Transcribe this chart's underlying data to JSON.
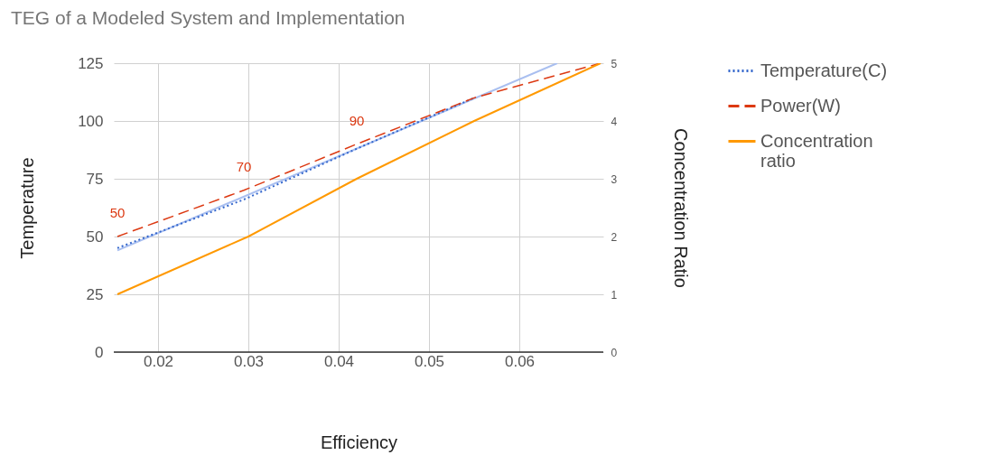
{
  "chart_data": {
    "type": "line",
    "title": "TEG of a Modeled System and Implementation",
    "xlabel": "Efficiency",
    "ylabel": "Temperature",
    "y2label": "Concentration Ratio",
    "series": [
      {
        "type": "line",
        "color": "#a9bff0",
        "line_style": "solid",
        "x": [
          0.0155,
          0.0642
        ],
        "values": [
          44,
          125
        ]
      },
      {
        "name": "Temperature(C)",
        "color": "#3366cc",
        "line_style": "dotted",
        "x": [
          0.0155,
          0.0295,
          0.042,
          0.055
        ],
        "values": [
          45,
          66,
          88,
          110
        ]
      },
      {
        "name": "Power(W)",
        "color": "#dc3912",
        "line_style": "dashed",
        "x": [
          0.0155,
          0.0295,
          0.042,
          0.055,
          0.069
        ],
        "values": [
          50,
          70,
          90,
          110,
          125
        ],
        "value_labels": [
          "50",
          "70",
          "90",
          null,
          null
        ]
      },
      {
        "name": "Concentration ratio",
        "color": "#ff9900",
        "line_style": "solid",
        "axis": "y2",
        "x": [
          0.0155,
          0.03,
          0.042,
          0.055,
          0.069
        ],
        "values": [
          1,
          2,
          3,
          4,
          5
        ]
      }
    ],
    "xlim": [
      0.0151,
      0.0693
    ],
    "xticks": [
      0.02,
      0.03,
      0.04,
      0.05,
      0.06
    ],
    "ylim": [
      0,
      125
    ],
    "yticks": [
      0,
      25,
      50,
      75,
      100,
      125
    ],
    "y2lim": [
      0,
      5
    ],
    "y2ticks": [
      0,
      1,
      2,
      3,
      4,
      5
    ],
    "grid": true,
    "legend": "right"
  }
}
